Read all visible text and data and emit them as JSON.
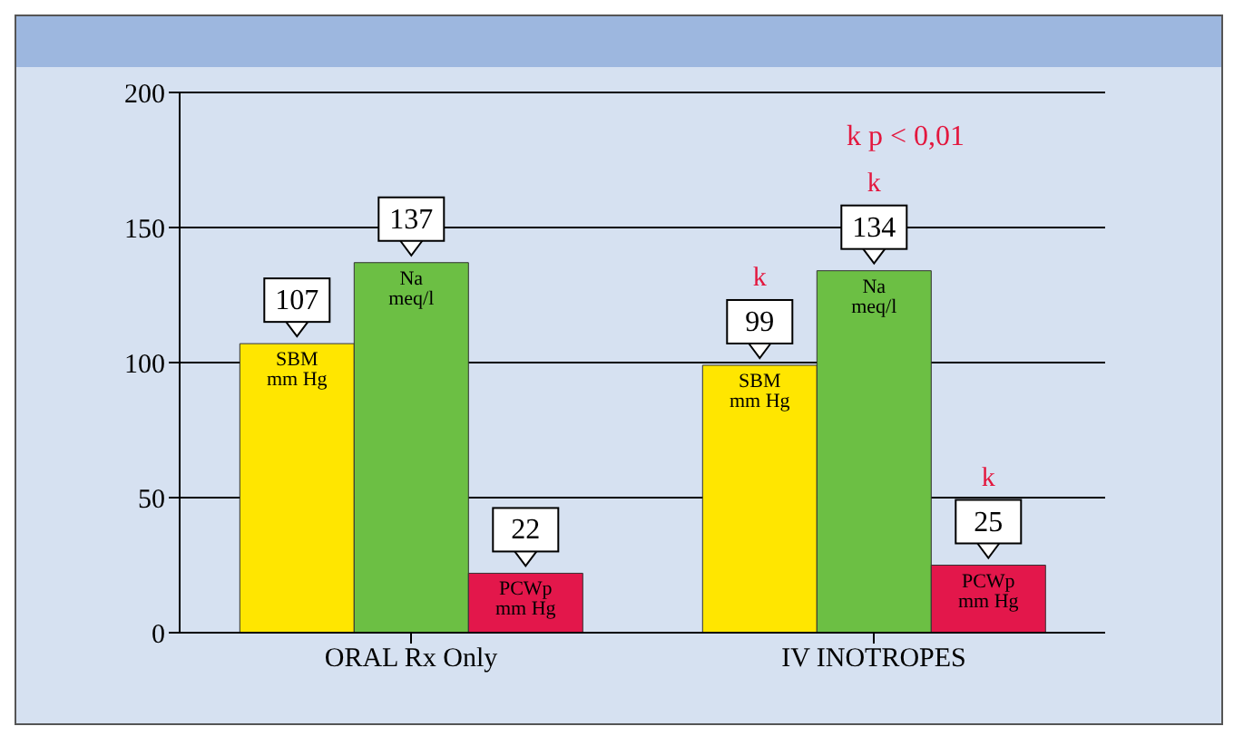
{
  "chart_data": {
    "type": "bar",
    "categories": [
      "ORAL Rx Only",
      "IV INOTROPES"
    ],
    "series": [
      {
        "name": "SBM mm Hg",
        "color": "#ffe600",
        "values": [
          107,
          99
        ]
      },
      {
        "name": "Na meq/l",
        "color": "#6cbf44",
        "values": [
          137,
          134
        ]
      },
      {
        "name": "PCWp mm Hg",
        "color": "#e3174b",
        "values": [
          22,
          25
        ]
      }
    ],
    "ylim": [
      0,
      200
    ],
    "yticks": [
      0,
      50,
      100,
      150,
      200
    ],
    "grid": "y",
    "legend": false,
    "data_labels": true,
    "annotations": [
      "k p < 0,01",
      "k",
      "k",
      "k"
    ]
  }
}
